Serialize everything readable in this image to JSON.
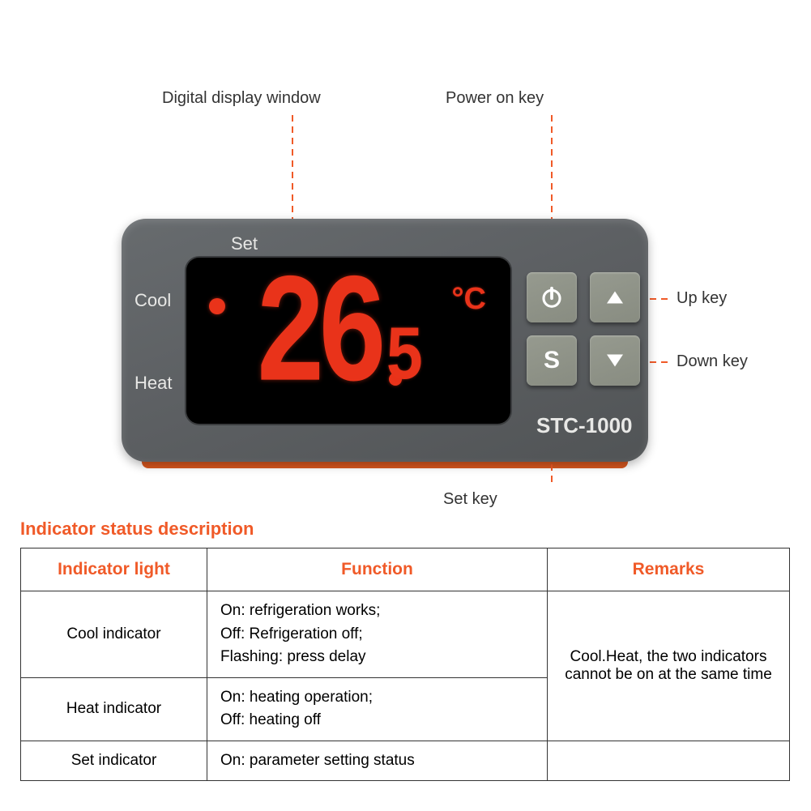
{
  "callouts": {
    "display_window": "Digital display window",
    "power_key": "Power on key",
    "up_key": "Up key",
    "down_key": "Down key",
    "set_key": "Set key"
  },
  "device": {
    "labels": {
      "set": "Set",
      "cool": "Cool",
      "heat": "Heat",
      "model": "STC-1000"
    },
    "display": {
      "main_digits": "26",
      "decimal_digit": "5",
      "unit": "°C",
      "digit_color": "#e9331a",
      "background": "#000000"
    },
    "buttons": {
      "power": "power-icon",
      "up": "triangle-up-icon",
      "set": "S",
      "down": "triangle-down-icon",
      "button_color": "#8d9187"
    },
    "body_color": "#5e6164",
    "accent_color": "#d8571f"
  },
  "table": {
    "title": "Indicator status description",
    "columns": [
      "Indicator light",
      "Function",
      "Remarks"
    ],
    "rows": [
      {
        "light": "Cool indicator",
        "function": "On: refrigeration works;\nOff: Refrigeration off;\nFlashing: press delay",
        "remarks_merged": true
      },
      {
        "light": "Heat indicator",
        "function": "On: heating operation;\nOff: heating off",
        "remarks_merged": true
      },
      {
        "light": "Set indicator",
        "function": "On: parameter setting status",
        "remarks": ""
      }
    ],
    "merged_remarks": "Cool.Heat, the two indicators cannot be on at the same time",
    "header_color": "#f05a28",
    "border_color": "#333333"
  },
  "callout_line_color": "#f05a28",
  "text_color": "#333333"
}
